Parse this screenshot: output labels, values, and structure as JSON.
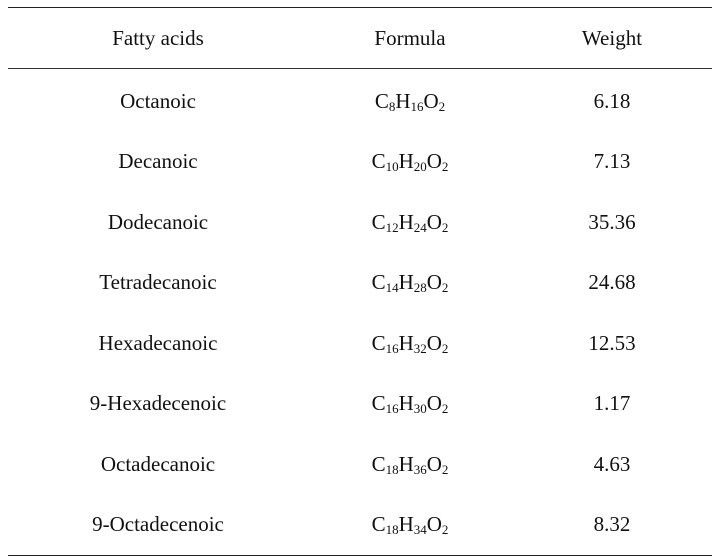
{
  "table": {
    "headers": [
      "Fatty acids",
      "Formula",
      "Weight"
    ],
    "rows": [
      {
        "name": "Octanoic",
        "formula": [
          [
            "C",
            "8"
          ],
          [
            "H",
            "16"
          ],
          [
            "O",
            "2"
          ]
        ],
        "weight": "6.18"
      },
      {
        "name": "Decanoic",
        "formula": [
          [
            "C",
            "10"
          ],
          [
            "H",
            "20"
          ],
          [
            "O",
            "2"
          ]
        ],
        "weight": "7.13"
      },
      {
        "name": "Dodecanoic",
        "formula": [
          [
            "C",
            "12"
          ],
          [
            "H",
            "24"
          ],
          [
            "O",
            "2"
          ]
        ],
        "weight": "35.36"
      },
      {
        "name": "Tetradecanoic",
        "formula": [
          [
            "C",
            "14"
          ],
          [
            "H",
            "28"
          ],
          [
            "O",
            "2"
          ]
        ],
        "weight": "24.68"
      },
      {
        "name": "Hexadecanoic",
        "formula": [
          [
            "C",
            "16"
          ],
          [
            "H",
            "32"
          ],
          [
            "O",
            "2"
          ]
        ],
        "weight": "12.53"
      },
      {
        "name": "9-Hexadecenoic",
        "formula": [
          [
            "C",
            "16"
          ],
          [
            "H",
            "30"
          ],
          [
            "O",
            "2"
          ]
        ],
        "weight": "1.17"
      },
      {
        "name": "Octadecanoic",
        "formula": [
          [
            "C",
            "18"
          ],
          [
            "H",
            "36"
          ],
          [
            "O",
            "2"
          ]
        ],
        "weight": "4.63"
      },
      {
        "name": "9-Octadecenoic",
        "formula": [
          [
            "C",
            "18"
          ],
          [
            "H",
            "34"
          ],
          [
            "O",
            "2"
          ]
        ],
        "weight": "8.32"
      }
    ]
  }
}
